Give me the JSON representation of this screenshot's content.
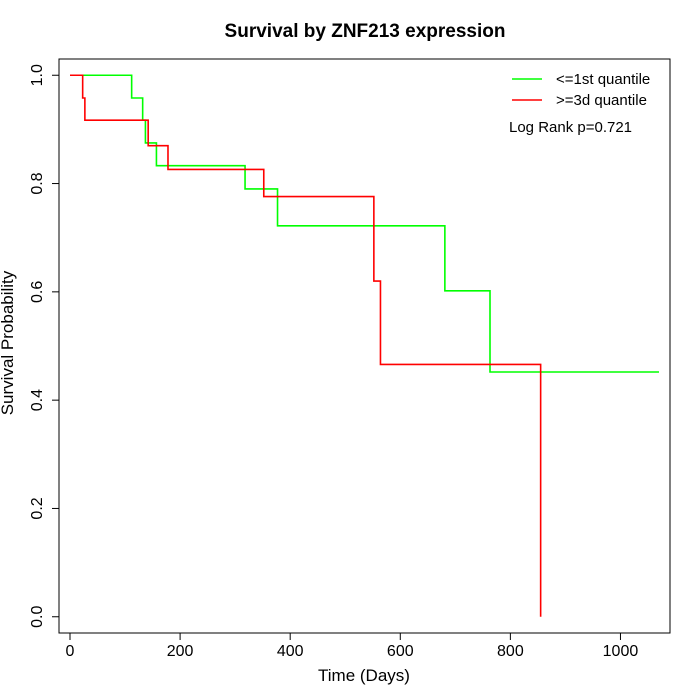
{
  "chart_data": {
    "type": "line",
    "title": "Survival by ZNF213 expression",
    "xlabel": "Time (Days)",
    "ylabel": "Survival Probability",
    "xlim": [
      -20,
      1090
    ],
    "ylim": [
      -0.03,
      1.03
    ],
    "xticks": [
      0,
      200,
      400,
      600,
      800,
      1000
    ],
    "yticks": [
      0.0,
      0.2,
      0.4,
      0.6,
      0.8,
      1.0
    ],
    "xtick_labels": [
      "0",
      "200",
      "400",
      "600",
      "800",
      "1000"
    ],
    "ytick_labels": [
      "0.0",
      "0.2",
      "0.4",
      "0.6",
      "0.8",
      "1.0"
    ],
    "grid": false,
    "legend_position": "top-right",
    "annotation": "Log Rank p=0.721",
    "series": [
      {
        "name": "<=1st quantile",
        "color": "#00ff00",
        "step": true,
        "x": [
          0,
          112,
          132,
          137,
          157,
          318,
          377,
          681,
          763,
          1070
        ],
        "y": [
          1.0,
          0.958,
          0.917,
          0.875,
          0.833,
          0.79,
          0.722,
          0.602,
          0.452,
          0.452
        ]
      },
      {
        "name": ">=3d quantile",
        "color": "#ff0000",
        "step": true,
        "x": [
          0,
          23,
          27,
          142,
          178,
          352,
          552,
          564,
          855
        ],
        "y": [
          1.0,
          0.958,
          0.917,
          0.87,
          0.826,
          0.776,
          0.62,
          0.466,
          0.0
        ]
      }
    ]
  }
}
